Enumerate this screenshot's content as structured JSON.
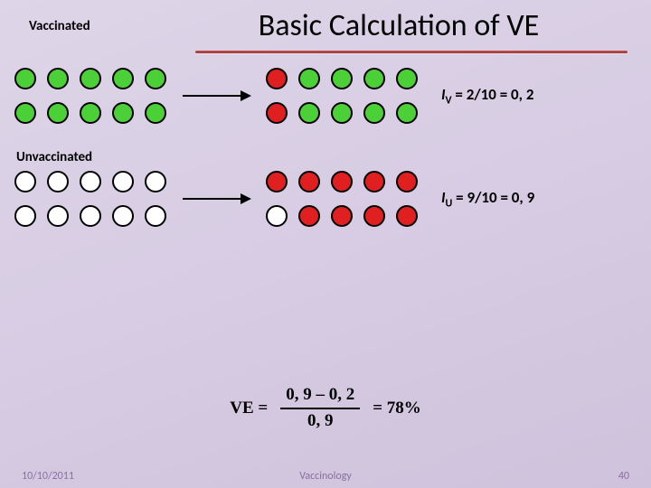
{
  "title": "Basic Calculation of VE",
  "colors": {
    "green": "#4cd038",
    "red": "#e02020",
    "white": "#ffffff"
  },
  "vaccinated": {
    "label": "Vaccinated",
    "before": [
      [
        "green",
        "green",
        "green",
        "green",
        "green"
      ],
      [
        "green",
        "green",
        "green",
        "green",
        "green"
      ]
    ],
    "after": [
      [
        "red",
        "green",
        "green",
        "green",
        "green"
      ],
      [
        "red",
        "green",
        "green",
        "green",
        "green"
      ]
    ],
    "incidence": {
      "sym": "I",
      "sub": "V",
      "frac": "2/10",
      "val": "0, 2"
    }
  },
  "unvaccinated": {
    "label": "Unvaccinated",
    "before": [
      [
        "white",
        "white",
        "white",
        "white",
        "white"
      ],
      [
        "white",
        "white",
        "white",
        "white",
        "white"
      ]
    ],
    "after": [
      [
        "red",
        "red",
        "red",
        "red",
        "red"
      ],
      [
        "white",
        "red",
        "red",
        "red",
        "red"
      ]
    ],
    "incidence": {
      "sym": "I",
      "sub": "U",
      "frac": "9/10",
      "val": "0, 9"
    }
  },
  "formula": {
    "lhs": "VE  =",
    "numerator": "0, 9 – 0, 2",
    "denominator": "0, 9",
    "result": "=  78%"
  },
  "footer": {
    "date": "10/10/2011",
    "center": "Vaccinology",
    "page": "40"
  }
}
